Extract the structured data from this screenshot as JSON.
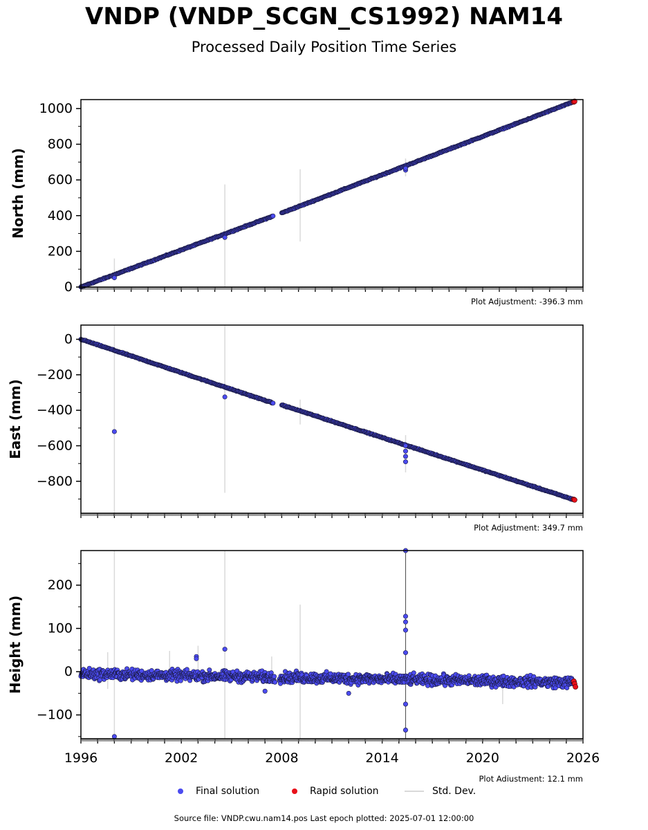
{
  "header": {
    "title": "VNDP (VNDP_SCGN_CS1992) NAM14",
    "subtitle": "Processed Daily Position Time Series"
  },
  "footer": {
    "source": "Source file: VNDP.cwu.nam14.pos  Last epoch plotted: 2025-07-01 12:00:00"
  },
  "legend": {
    "final": "Final solution",
    "rapid": "Rapid solution",
    "std": "Std. Dev."
  },
  "colors": {
    "final": "#4b4bf0",
    "rapid": "#e8101a",
    "std": "#d9d9d9",
    "axis": "#000000"
  },
  "chart_data": [
    {
      "type": "scatter",
      "ylabel": "North (mm)",
      "ylim": [
        0,
        1050
      ],
      "yticks": [
        0,
        200,
        400,
        600,
        800,
        1000
      ],
      "xlim": [
        1996,
        2026
      ],
      "adjustment_label": "Plot Adjustment: -396.3 mm",
      "trend": [
        [
          1996.0,
          0
        ],
        [
          2007.5,
          398
        ],
        [
          2008.0,
          415
        ],
        [
          2025.5,
          1040
        ]
      ],
      "outliers": [
        [
          1998.0,
          52
        ],
        [
          2004.6,
          278
        ],
        [
          2015.4,
          655
        ],
        [
          2015.4,
          665
        ]
      ],
      "stddev_bars": [
        [
          1998.0,
          40,
          160
        ],
        [
          2004.6,
          0,
          575
        ],
        [
          2009.1,
          255,
          660
        ],
        [
          2015.4,
          620,
          720
        ]
      ],
      "rapid": [
        [
          2025.45,
          1037
        ],
        [
          2025.5,
          1040
        ]
      ]
    },
    {
      "type": "scatter",
      "ylabel": "East (mm)",
      "ylim": [
        -980,
        80
      ],
      "yticks": [
        0,
        -200,
        -400,
        -600,
        -800
      ],
      "xlim": [
        1996,
        2026
      ],
      "adjustment_label": "Plot Adjustment: 349.7 mm",
      "trend": [
        [
          1996.0,
          0
        ],
        [
          2007.5,
          -360
        ],
        [
          2008.0,
          -370
        ],
        [
          2025.5,
          -905
        ]
      ],
      "outliers": [
        [
          1998.0,
          -520
        ],
        [
          2004.6,
          -325
        ],
        [
          2015.4,
          -600
        ],
        [
          2015.4,
          -630
        ],
        [
          2015.4,
          -660
        ],
        [
          2015.4,
          -690
        ]
      ],
      "stddev_bars": [
        [
          1998.0,
          -980,
          80
        ],
        [
          2004.6,
          -865,
          80
        ],
        [
          2009.1,
          -480,
          -340
        ],
        [
          2015.4,
          -750,
          -540
        ]
      ],
      "rapid": [
        [
          2025.45,
          -902
        ],
        [
          2025.5,
          -905
        ]
      ]
    },
    {
      "type": "scatter",
      "ylabel": "Height (mm)",
      "ylim": [
        -155,
        280
      ],
      "yticks": [
        200,
        100,
        0,
        -100
      ],
      "xlim": [
        1996,
        2026
      ],
      "xticks": [
        1996,
        2002,
        2008,
        2014,
        2020,
        2026
      ],
      "adjustment_label": "Plot Adjustment: 12.1 mm",
      "band": {
        "mean_start": -5,
        "mean_end": -25,
        "spread": 18
      },
      "outliers": [
        [
          1998.0,
          -150
        ],
        [
          2002.9,
          35
        ],
        [
          2002.9,
          30
        ],
        [
          2004.6,
          52
        ],
        [
          2007.0,
          -45
        ],
        [
          2012.0,
          -50
        ],
        [
          2015.4,
          280
        ],
        [
          2015.4,
          128
        ],
        [
          2015.4,
          115
        ],
        [
          2015.4,
          96
        ],
        [
          2015.4,
          44
        ],
        [
          2015.4,
          -75
        ],
        [
          2015.4,
          -135
        ]
      ],
      "stddev_bars": [
        [
          1998.0,
          -155,
          280
        ],
        [
          2004.6,
          -155,
          280
        ],
        [
          2009.1,
          -155,
          155
        ],
        [
          2015.4,
          -155,
          280
        ],
        [
          1997.6,
          -40,
          45
        ],
        [
          2001.3,
          -10,
          48
        ],
        [
          2003.0,
          0,
          60
        ],
        [
          2007.4,
          -20,
          35
        ],
        [
          2021.2,
          -75,
          -15
        ]
      ],
      "rapid": [
        [
          2025.45,
          -22
        ],
        [
          2025.5,
          -28
        ],
        [
          2025.55,
          -35
        ]
      ]
    }
  ]
}
